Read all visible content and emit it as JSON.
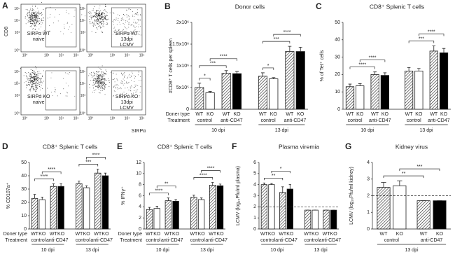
{
  "panel_a": {
    "label": "A",
    "y_label": "CD8",
    "x_label": "SIRPα",
    "ticks": [
      "10⁰",
      "10³",
      "10⁴",
      "10⁵"
    ],
    "plots": [
      {
        "text": [
          "SIRPα WT",
          "naive"
        ]
      },
      {
        "text": [
          "SIRPα WT",
          "13dpi",
          "LCMV"
        ]
      },
      {
        "text": [
          "SIRPα KO",
          "naive"
        ]
      },
      {
        "text": [
          "SIRPα KO",
          "13dpi",
          "LCMV"
        ]
      }
    ]
  },
  "chart_data": [
    {
      "type": "bar",
      "label": "B",
      "title": "Donor cells",
      "y_label": "#CD8⁺ T cells per spleen",
      "categories": [
        "WT",
        "KO",
        "WT",
        "KO",
        "WT",
        "KO",
        "WT",
        "KO"
      ],
      "values": [
        500000,
        380000,
        830000,
        820000,
        760000,
        700000,
        1330000,
        1330000
      ],
      "errors": [
        100000,
        30000,
        60000,
        50000,
        80000,
        30000,
        120000,
        100000
      ],
      "colors": [
        "#ffffff",
        "#ffffff",
        "#ffffff",
        "#000000",
        "#ffffff",
        "#ffffff",
        "#ffffff",
        "#000000"
      ],
      "hatched": [
        true,
        false,
        true,
        false,
        true,
        false,
        true,
        false
      ],
      "treatments": [
        "control",
        "anti-CD47",
        "control",
        "anti-CD47"
      ],
      "dpi": [
        "10 dpi",
        "13 dpi"
      ],
      "row_labels": [
        "Doner type",
        "Treatment"
      ],
      "ylim": [
        0,
        2000000
      ],
      "yticks": [
        0,
        {
          "value": 500000,
          "label": "5x10⁵"
        },
        {
          "value": 1000000,
          "label": "1x10⁶"
        },
        {
          "value": 1500000,
          "label": "1.5x10⁶"
        },
        {
          "value": 2000000,
          "label": "2x10⁶"
        }
      ],
      "significance": [
        {
          "label": "*",
          "bars": [
            0,
            1
          ]
        },
        {
          "label": "***",
          "bars": [
            0,
            2
          ]
        },
        {
          "label": "****",
          "bars": [
            1,
            3
          ]
        },
        {
          "label": "*",
          "bars": [
            4,
            5
          ]
        },
        {
          "label": "***",
          "bars": [
            4,
            6
          ]
        },
        {
          "label": "****",
          "bars": [
            5,
            7
          ]
        }
      ]
    },
    {
      "type": "bar",
      "label": "C",
      "title": "CD8⁺ Splenic T cells",
      "y_label": "% of Tet⁺ cells",
      "categories": [
        "WT",
        "KO",
        "WT",
        "KO",
        "WT",
        "KO",
        "WT",
        "KO"
      ],
      "values": [
        13,
        13.5,
        20,
        19.5,
        22,
        22,
        33.5,
        32.5
      ],
      "errors": [
        1.5,
        1.2,
        1.5,
        1.5,
        2,
        1.5,
        3,
        2.5
      ],
      "colors": [
        "#ffffff",
        "#ffffff",
        "#ffffff",
        "#000000",
        "#ffffff",
        "#ffffff",
        "#ffffff",
        "#000000"
      ],
      "hatched": [
        true,
        false,
        true,
        false,
        true,
        false,
        true,
        false
      ],
      "treatments": [
        "control",
        "anti-CD47",
        "control",
        "anti-CD47"
      ],
      "dpi": [
        "10 dpi",
        "13 dpi"
      ],
      "ylim": [
        0,
        50
      ],
      "yticks": [
        0,
        10,
        20,
        30,
        40,
        50
      ],
      "significance": [
        {
          "label": "****",
          "bars": [
            0,
            2
          ]
        },
        {
          "label": "****",
          "bars": [
            1,
            3
          ]
        },
        {
          "label": "***",
          "bars": [
            4,
            6
          ]
        },
        {
          "label": "****",
          "bars": [
            5,
            7
          ]
        }
      ]
    },
    {
      "type": "bar",
      "label": "D",
      "title": "CD8⁺ Splenic T cells",
      "y_label": "% CD107a⁺",
      "categories": [
        "WT",
        "KO",
        "WT",
        "KO",
        "WT",
        "KO",
        "WT",
        "KO"
      ],
      "values": [
        23,
        22,
        32,
        32,
        34,
        31,
        42,
        40
      ],
      "errors": [
        3,
        2,
        2,
        2,
        2,
        1.5,
        3,
        2
      ],
      "colors": [
        "#ffffff",
        "#ffffff",
        "#ffffff",
        "#000000",
        "#ffffff",
        "#ffffff",
        "#ffffff",
        "#000000"
      ],
      "hatched": [
        true,
        false,
        true,
        false,
        true,
        false,
        true,
        false
      ],
      "treatments": [
        "control",
        "anti-CD47",
        "control",
        "anti-CD47"
      ],
      "dpi": [
        "10 dpi",
        "13 dpi"
      ],
      "row_labels": [
        "Doner type",
        "Treatment"
      ],
      "ylim": [
        0,
        50
      ],
      "yticks": [
        0,
        10,
        20,
        30,
        40,
        50
      ],
      "significance": [
        {
          "label": "****",
          "bars": [
            0,
            2
          ]
        },
        {
          "label": "****",
          "bars": [
            1,
            3
          ]
        },
        {
          "label": "***",
          "bars": [
            4,
            6
          ]
        },
        {
          "label": "****",
          "bars": [
            5,
            7
          ]
        }
      ]
    },
    {
      "type": "bar",
      "label": "E",
      "title": "CD8⁺ Splenic T cells",
      "y_label": "% IFNγ⁺",
      "categories": [
        "WT",
        "KO",
        "WT",
        "KO",
        "WT",
        "KO",
        "WT",
        "KO"
      ],
      "values": [
        3.5,
        3.7,
        5.1,
        5.0,
        5.7,
        5.3,
        7.9,
        7.8
      ],
      "errors": [
        0.4,
        0.4,
        0.5,
        0.3,
        0.4,
        0.3,
        0.5,
        0.3
      ],
      "colors": [
        "#ffffff",
        "#ffffff",
        "#ffffff",
        "#000000",
        "#ffffff",
        "#ffffff",
        "#ffffff",
        "#000000"
      ],
      "hatched": [
        true,
        false,
        true,
        false,
        true,
        false,
        true,
        false
      ],
      "treatments": [
        "control",
        "anti-CD47",
        "control",
        "anti-CD47"
      ],
      "dpi": [
        "10 dpi",
        "13 dpi"
      ],
      "row_labels": [
        "Doner type",
        "Treatment"
      ],
      "ylim": [
        0,
        12
      ],
      "yticks": [
        0,
        2,
        4,
        6,
        8,
        10,
        12
      ],
      "significance": [
        {
          "label": "****",
          "bars": [
            0,
            2
          ]
        },
        {
          "label": "**",
          "bars": [
            1,
            3
          ]
        },
        {
          "label": "****",
          "bars": [
            4,
            6
          ]
        },
        {
          "label": "****",
          "bars": [
            5,
            7
          ]
        }
      ]
    },
    {
      "type": "bar",
      "label": "F",
      "title": "Plasma viremia",
      "y_label": "LCMV (log₁₀Pfu/ml plasma)",
      "categories": [
        "WT",
        "KO",
        "WT",
        "KO",
        "WT",
        "KO",
        "WT",
        "KO"
      ],
      "values": [
        4.0,
        4.0,
        3.3,
        3.6,
        1.7,
        1.7,
        1.7,
        1.7
      ],
      "errors": [
        0.15,
        0.1,
        0.5,
        0.4,
        0,
        0,
        0,
        0
      ],
      "colors": [
        "#ffffff",
        "#ffffff",
        "#ffffff",
        "#000000",
        "#ffffff",
        "#ffffff",
        "#ffffff",
        "#000000"
      ],
      "hatched": [
        true,
        false,
        true,
        false,
        true,
        false,
        true,
        false
      ],
      "treatments": [
        "control",
        "anti-CD47",
        "control",
        "anti-CD47"
      ],
      "dpi": [
        "10 dpi",
        "13 dpi"
      ],
      "detection_limit": 2,
      "ylim": [
        0,
        6
      ],
      "yticks": [
        0,
        1,
        2,
        3,
        4,
        5,
        6
      ],
      "significance": [
        {
          "label": "**",
          "bars": [
            0,
            2
          ]
        },
        {
          "label": "*",
          "bars": [
            1,
            3
          ]
        }
      ]
    },
    {
      "type": "bar",
      "label": "G",
      "title": "Kidney virus",
      "y_label": "LCMV (log₁₀Pfu/ml kidney)",
      "categories": [
        "WT",
        "KO",
        "WT",
        "KO"
      ],
      "values": [
        2.5,
        2.6,
        1.7,
        1.7
      ],
      "errors": [
        0.3,
        0.3,
        0,
        0
      ],
      "colors": [
        "#ffffff",
        "#ffffff",
        "#ffffff",
        "#000000"
      ],
      "hatched": [
        true,
        false,
        true,
        false
      ],
      "treatments": [
        "control",
        "anti-CD47"
      ],
      "dpi": [
        "13 dpi"
      ],
      "detection_limit": 2,
      "ylim": [
        0,
        4
      ],
      "yticks": [
        0,
        1,
        2,
        3,
        4
      ],
      "significance": [
        {
          "label": "**",
          "bars": [
            0,
            2
          ]
        },
        {
          "label": "***",
          "bars": [
            1,
            3
          ]
        }
      ]
    }
  ]
}
